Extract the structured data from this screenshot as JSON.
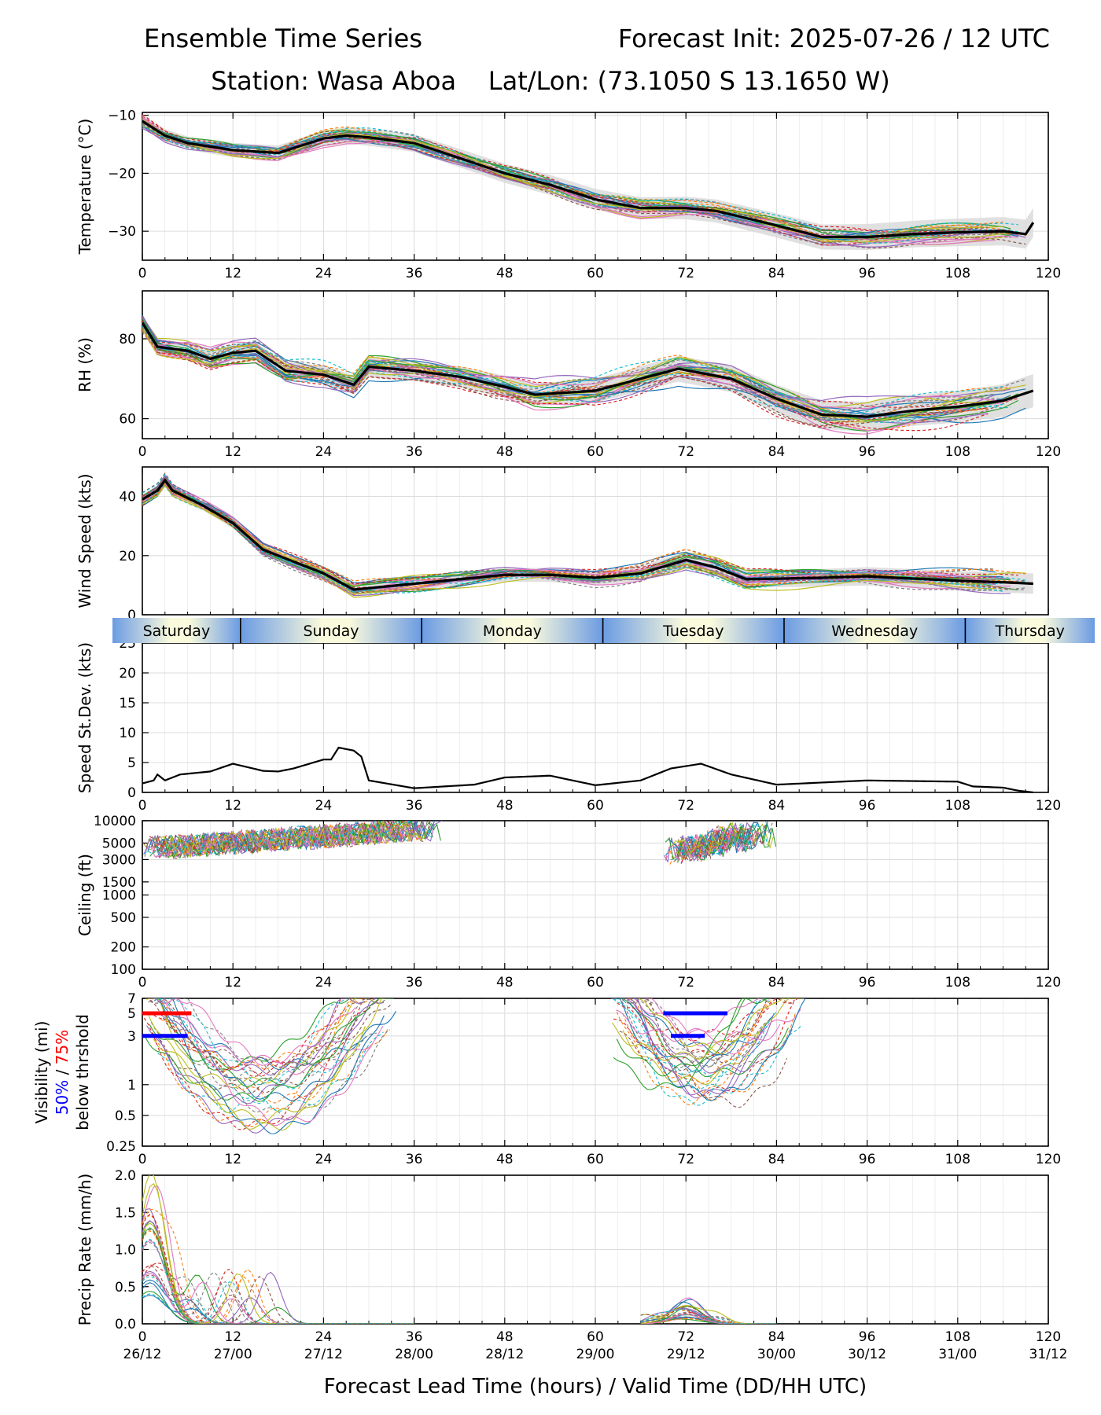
{
  "header": {
    "title_left": "Ensemble Time Series",
    "title_right": "Forecast Init: 2025-07-26 / 12 UTC",
    "station_line": "Station: Wasa Aboa    Lat/Lon: (73.1050 S 13.1650 W)"
  },
  "colors": {
    "mean": "#000000",
    "spread": "#d8d8d8",
    "grid": "#dddddd",
    "p50": "#0000ff",
    "p75": "#ff0000",
    "day_band_blue": "#6b9be3",
    "day_band_cream": "#fafadc",
    "members": [
      "#1f77b4",
      "#ff7f0e",
      "#2ca02c",
      "#d62728",
      "#9467bd",
      "#8c564b",
      "#e377c2",
      "#7f7f7f",
      "#bcbd22",
      "#17becf"
    ]
  },
  "x_axis": {
    "label": "Forecast Lead Time (hours) / Valid Time (DD/HH UTC)",
    "ticks": [
      0,
      12,
      24,
      36,
      48,
      60,
      72,
      84,
      96,
      108,
      120
    ],
    "valid_times": [
      "26/12",
      "27/00",
      "27/12",
      "28/00",
      "28/12",
      "29/00",
      "29/12",
      "30/00",
      "30/12",
      "31/00",
      "31/12"
    ],
    "range": [
      0,
      120
    ]
  },
  "day_band": {
    "days": [
      "Saturday",
      "Sunday",
      "Monday",
      "Tuesday",
      "Wednesday",
      "Thursday"
    ],
    "boundaries": [
      13,
      37,
      61,
      85,
      109
    ]
  },
  "visibility_legend": {
    "line1": "Visibility (mi)",
    "p50_label": "50%",
    "separator": " / ",
    "p75_label": "75%",
    "line3": "below thrshold"
  },
  "chart_data": [
    {
      "type": "line",
      "id": "temperature",
      "ylabel": "Temperature (°C)",
      "ylim": [
        -35,
        -9.5
      ],
      "yticks": [
        -30,
        -20,
        -10
      ],
      "ytick_labels": [
        "−30",
        "−20",
        "−10"
      ],
      "grid": true,
      "mean": [
        [
          0,
          -11
        ],
        [
          3,
          -13.5
        ],
        [
          6,
          -14.8
        ],
        [
          12,
          -16
        ],
        [
          18,
          -16.5
        ],
        [
          24,
          -14
        ],
        [
          27,
          -13.5
        ],
        [
          30,
          -13.8
        ],
        [
          36,
          -14.8
        ],
        [
          40,
          -16.5
        ],
        [
          48,
          -20
        ],
        [
          54,
          -22
        ],
        [
          60,
          -24.5
        ],
        [
          66,
          -26
        ],
        [
          72,
          -26
        ],
        [
          76,
          -26.5
        ],
        [
          84,
          -29
        ],
        [
          90,
          -31
        ],
        [
          96,
          -31
        ],
        [
          102,
          -30.5
        ],
        [
          108,
          -30.2
        ],
        [
          114,
          -30
        ],
        [
          117,
          -30.5
        ],
        [
          118,
          -28.5
        ]
      ],
      "spread": 1.8,
      "member_noise": 2.2
    },
    {
      "type": "line",
      "id": "rh",
      "ylabel": "RH (%)",
      "ylim": [
        55,
        92
      ],
      "yticks": [
        60,
        80
      ],
      "ytick_labels": [
        "60",
        "80"
      ],
      "grid": true,
      "mean": [
        [
          0,
          84
        ],
        [
          2,
          78
        ],
        [
          6,
          77
        ],
        [
          9,
          75
        ],
        [
          12,
          76.5
        ],
        [
          15,
          77
        ],
        [
          19,
          72
        ],
        [
          24,
          71
        ],
        [
          28,
          68.5
        ],
        [
          30,
          73
        ],
        [
          36,
          72
        ],
        [
          42,
          70.5
        ],
        [
          48,
          68
        ],
        [
          52,
          66
        ],
        [
          60,
          67
        ],
        [
          66,
          70
        ],
        [
          71,
          72.5
        ],
        [
          78,
          70
        ],
        [
          84,
          65
        ],
        [
          90,
          61
        ],
        [
          96,
          60.5
        ],
        [
          102,
          62
        ],
        [
          108,
          63
        ],
        [
          114,
          64.5
        ],
        [
          118,
          67
        ]
      ],
      "spread": 3.0,
      "member_noise": 5.0
    },
    {
      "type": "line",
      "id": "wind_speed",
      "ylabel": "Wind Speed (kts)",
      "ylim": [
        0,
        50
      ],
      "yticks": [
        0,
        20,
        40
      ],
      "ytick_labels": [
        "0",
        "20",
        "40"
      ],
      "grid": true,
      "mean": [
        [
          0,
          39
        ],
        [
          2,
          42
        ],
        [
          3,
          45.5
        ],
        [
          4,
          42
        ],
        [
          8,
          37
        ],
        [
          12,
          31
        ],
        [
          16,
          22
        ],
        [
          20,
          18
        ],
        [
          24,
          14
        ],
        [
          28,
          8.5
        ],
        [
          36,
          10.5
        ],
        [
          48,
          13.5
        ],
        [
          54,
          13.5
        ],
        [
          60,
          12.5
        ],
        [
          66,
          14
        ],
        [
          72,
          18.5
        ],
        [
          76,
          16
        ],
        [
          80,
          12
        ],
        [
          90,
          12.5
        ],
        [
          96,
          13
        ],
        [
          108,
          11.5
        ],
        [
          114,
          11
        ],
        [
          118,
          10.5
        ]
      ],
      "spread": 2.5,
      "member_noise": 4.0
    },
    {
      "type": "line",
      "id": "speed_stdev",
      "ylabel": "Speed St.Dev. (kts)",
      "ylim": [
        0,
        25
      ],
      "yticks": [
        0,
        5,
        10,
        15,
        20,
        25
      ],
      "ytick_labels": [
        "0",
        "5",
        "10",
        "15",
        "20",
        "25"
      ],
      "grid": true,
      "series": [
        {
          "values": [
            [
              0,
              1.5
            ],
            [
              1.5,
              2
            ],
            [
              2,
              3
            ],
            [
              3,
              2
            ],
            [
              5,
              3
            ],
            [
              9,
              3.5
            ],
            [
              12,
              4.8
            ],
            [
              16,
              3.6
            ],
            [
              18,
              3.5
            ],
            [
              20,
              4
            ],
            [
              24,
              5.5
            ],
            [
              25,
              5.5
            ],
            [
              26,
              7.5
            ],
            [
              28,
              7
            ],
            [
              29,
              6
            ],
            [
              30,
              2
            ],
            [
              36,
              0.7
            ],
            [
              40,
              1
            ],
            [
              44,
              1.3
            ],
            [
              48,
              2.5
            ],
            [
              54,
              2.8
            ],
            [
              60,
              1.2
            ],
            [
              66,
              2
            ],
            [
              70,
              4
            ],
            [
              74,
              4.8
            ],
            [
              78,
              3
            ],
            [
              84,
              1.3
            ],
            [
              96,
              2
            ],
            [
              108,
              1.8
            ],
            [
              110,
              1
            ],
            [
              114,
              0.8
            ],
            [
              116,
              0.3
            ],
            [
              118,
              0
            ]
          ]
        }
      ]
    },
    {
      "type": "line",
      "id": "ceiling",
      "ylabel": "Ceiling (ft)",
      "y_scale": "log",
      "ylim": [
        100,
        10000
      ],
      "yticks": [
        100,
        200,
        500,
        1000,
        1500,
        3000,
        5000,
        10000
      ],
      "ytick_labels": [
        "100",
        "200",
        "500",
        "1000",
        "1500",
        "3000",
        "5000",
        "10000"
      ],
      "grid": true,
      "member_clusters": [
        {
          "start": 0,
          "end": 40,
          "low": 3000,
          "high": 10000
        },
        {
          "start": 69,
          "end": 84,
          "low": 2500,
          "high": 10000
        }
      ]
    },
    {
      "type": "line",
      "id": "visibility",
      "y_scale": "log",
      "ylim": [
        0.25,
        7
      ],
      "yticks": [
        0.25,
        0.5,
        1,
        3,
        5,
        7
      ],
      "ytick_labels": [
        "0.25",
        "0.5",
        "1",
        "3",
        "5",
        "7"
      ],
      "grid": true,
      "member_clusters": [
        {
          "start": 0,
          "end": 34,
          "low": 0.35,
          "high": 7
        },
        {
          "start": 62,
          "end": 88,
          "low": 0.6,
          "high": 7
        }
      ],
      "threshold_bars": [
        {
          "threshold": 5,
          "start": 0,
          "end": 6.5,
          "percentile": "75%"
        },
        {
          "threshold": 3,
          "start": 0,
          "end": 6,
          "percentile": "50%"
        },
        {
          "threshold": 5,
          "start": 69,
          "end": 77.5,
          "percentile": "50%"
        },
        {
          "threshold": 3,
          "start": 70,
          "end": 74.5,
          "percentile": "50%"
        }
      ]
    },
    {
      "type": "line",
      "id": "precip_rate",
      "ylabel": "Precip Rate (mm/h)",
      "ylim": [
        0,
        2.0
      ],
      "yticks": [
        0.0,
        0.5,
        1.0,
        1.5,
        2.0
      ],
      "ytick_labels": [
        "0.0",
        "0.5",
        "1.0",
        "1.5",
        "2.0"
      ],
      "grid": true,
      "member_clusters": [
        {
          "start": 0,
          "end": 36,
          "peak_hour": 1,
          "peak": 1.5
        },
        {
          "start": 66,
          "end": 84,
          "peak_hour": 72,
          "peak": 0.25
        }
      ]
    }
  ]
}
